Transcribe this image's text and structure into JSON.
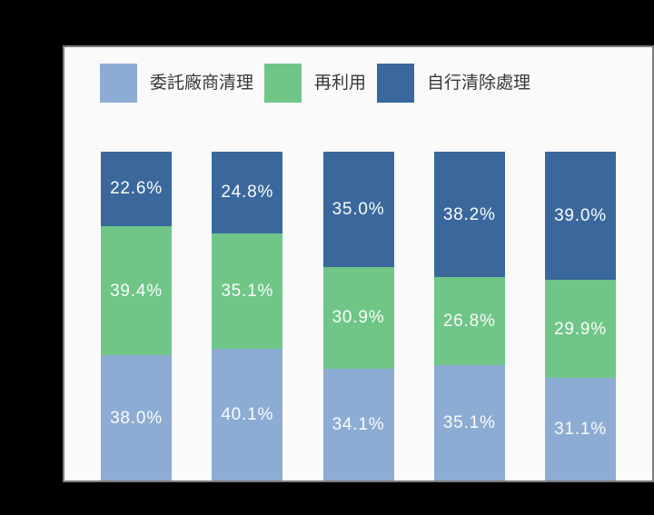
{
  "canvas": {
    "background_color": "#000000"
  },
  "panel": {
    "background_color": "#FAFAFA",
    "border_color": "#7D7D7D"
  },
  "legend": {
    "position": "top-left",
    "items": [
      {
        "label": "委託廠商清理",
        "color": "#8CACD4"
      },
      {
        "label": "再利用",
        "color": "#6FC687"
      },
      {
        "label": "自行清除處理",
        "color": "#3A689C"
      }
    ]
  },
  "chart_data": {
    "type": "bar",
    "stacked": true,
    "orientation": "vertical",
    "title": "",
    "xlabel": "",
    "ylabel": "",
    "ylim": [
      0,
      100
    ],
    "axes_visible": false,
    "grid": false,
    "legend_position": "top",
    "value_format": "percent",
    "categories": [
      "",
      "",
      "",
      "",
      ""
    ],
    "series": [
      {
        "name": "委託廠商清理",
        "color": "#8CACD4",
        "values": [
          38.0,
          40.1,
          34.1,
          35.1,
          31.1
        ],
        "labels": [
          "38.0%",
          "40.1%",
          "34.1%",
          "35.1%",
          "31.1%"
        ]
      },
      {
        "name": "再利用",
        "color": "#6FC687",
        "values": [
          39.4,
          35.1,
          30.9,
          26.8,
          29.9
        ],
        "labels": [
          "39.4%",
          "35.1%",
          "30.9%",
          "26.8%",
          "29.9%"
        ]
      },
      {
        "name": "自行清除處理",
        "color": "#3A689C",
        "values": [
          22.6,
          24.8,
          35.0,
          38.2,
          39.0
        ],
        "labels": [
          "22.6%",
          "24.8%",
          "35.0%",
          "38.2%",
          "39.0%"
        ]
      }
    ],
    "stack_order_top_to_bottom": [
      2,
      1,
      0
    ],
    "data_label_color": "#FCFCFC"
  }
}
